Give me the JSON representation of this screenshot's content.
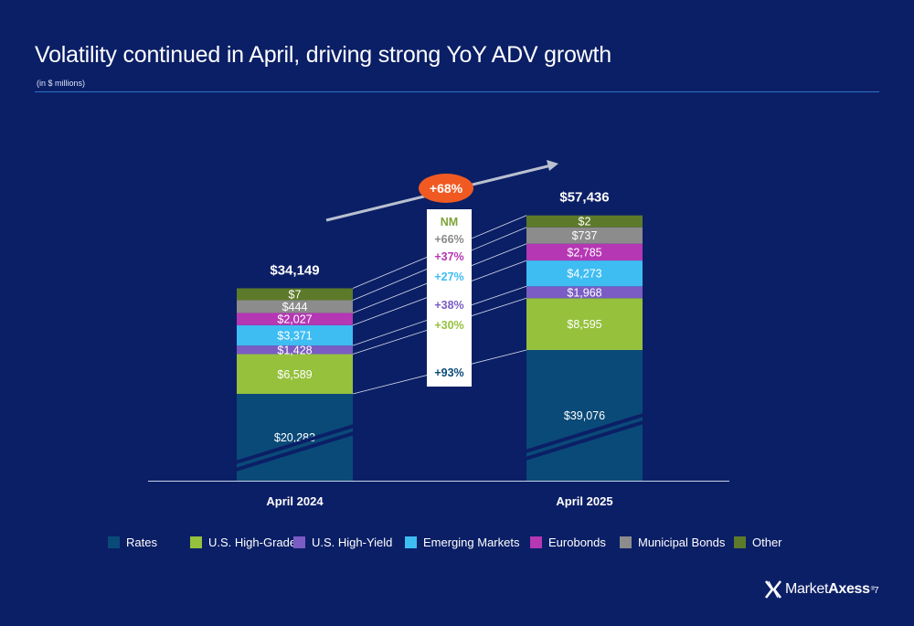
{
  "slide": {
    "title": "Volatility continued in April, driving strong YoY ADV growth",
    "subtitle": "(in $ millions)",
    "page_number": "7"
  },
  "logo": {
    "part1": "Market",
    "part2": "Axess",
    "mark": "®"
  },
  "colors": {
    "background": "#0b1f66",
    "Rates": "#0a4a78",
    "U.S. High-Grade": "#95c13d",
    "U.S. High-Yield": "#7a5cc4",
    "Emerging Markets": "#3ebdf3",
    "Eurobonds": "#b537b4",
    "Municipal Bonds": "#8c8c8c",
    "Other": "#5d7a2a",
    "growth_badge": "#f05a22"
  },
  "chart_data": {
    "type": "bar",
    "stacked": true,
    "categories": [
      "April 2024",
      "April 2025"
    ],
    "totals": [
      "$34,149",
      "$57,436"
    ],
    "series": [
      {
        "name": "Rates",
        "values": [
          20283,
          39076
        ],
        "labels": [
          "$20,283",
          "$39,076"
        ],
        "change": "+93%"
      },
      {
        "name": "U.S. High-Grade",
        "values": [
          6589,
          8595
        ],
        "labels": [
          "$6,589",
          "$8,595"
        ],
        "change": "+30%"
      },
      {
        "name": "U.S. High-Yield",
        "values": [
          1428,
          1968
        ],
        "labels": [
          "$1,428",
          "$1,968"
        ],
        "change": "+38%"
      },
      {
        "name": "Emerging Markets",
        "values": [
          3371,
          4273
        ],
        "labels": [
          "$3,371",
          "$4,273"
        ],
        "change": "+27%"
      },
      {
        "name": "Eurobonds",
        "values": [
          2027,
          2785
        ],
        "labels": [
          "$2,027",
          "$2,785"
        ],
        "change": "+37%"
      },
      {
        "name": "Municipal Bonds",
        "values": [
          444,
          737
        ],
        "labels": [
          "$444",
          "$737"
        ],
        "change": "+66%"
      },
      {
        "name": "Other",
        "values": [
          7,
          2
        ],
        "labels": [
          "$7",
          "$2"
        ],
        "change": "NM"
      }
    ],
    "total_change": "+68%",
    "axis_break": "broken y-axis within Rates segment",
    "legend": "bottom",
    "grid": false
  }
}
